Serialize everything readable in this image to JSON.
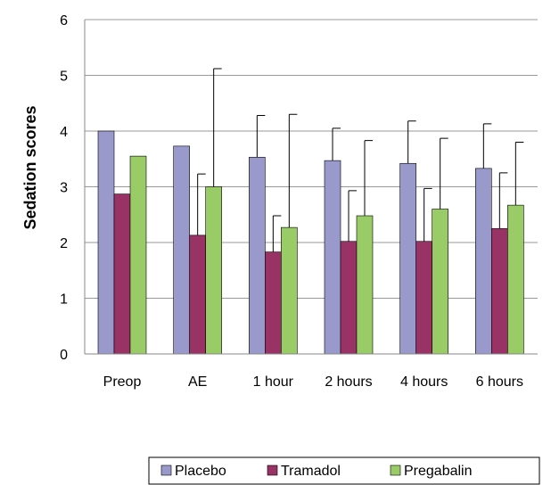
{
  "chart_data": {
    "type": "bar",
    "title": "",
    "xlabel": "",
    "ylabel": "Sedation scores",
    "ylim": [
      0,
      6
    ],
    "yticks": [
      0,
      1,
      2,
      3,
      4,
      5,
      6
    ],
    "grid": true,
    "legend_position": "bottom",
    "categories": [
      "Preop",
      "AE",
      "1 hour",
      "2 hours",
      "4 hours",
      "6 hours"
    ],
    "series": [
      {
        "name": "Placebo",
        "color": "#9999cc",
        "values": [
          4.0,
          3.73,
          3.53,
          3.47,
          3.42,
          3.33
        ],
        "error_upper": [
          null,
          null,
          4.28,
          4.05,
          4.18,
          4.13
        ]
      },
      {
        "name": "Tramadol",
        "color": "#993366",
        "values": [
          2.87,
          2.13,
          1.83,
          2.02,
          2.02,
          2.25
        ],
        "error_upper": [
          null,
          3.23,
          2.48,
          2.93,
          2.97,
          3.25
        ]
      },
      {
        "name": "Pregabalin",
        "color": "#99cc66",
        "values": [
          3.55,
          3.0,
          2.27,
          2.48,
          2.6,
          2.67
        ],
        "error_upper": [
          null,
          5.12,
          4.3,
          3.83,
          3.87,
          3.8
        ]
      }
    ]
  }
}
